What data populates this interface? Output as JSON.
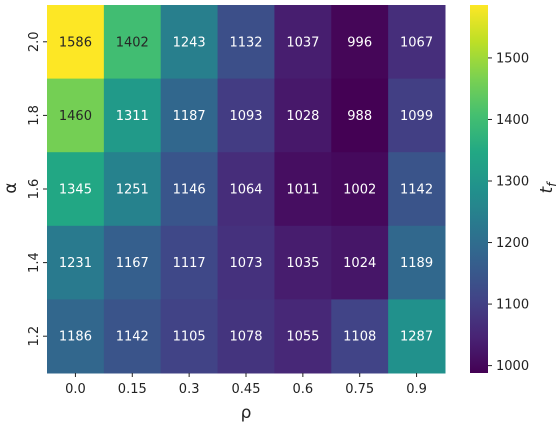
{
  "chart_data": {
    "type": "heatmap",
    "xlabel": "ρ",
    "ylabel": "α",
    "colorbar_label": "t",
    "colorbar_label_subscript": "f",
    "x": [
      "0.0",
      "0.15",
      "0.3",
      "0.45",
      "0.6",
      "0.75",
      "0.9"
    ],
    "y": [
      "2.0",
      "1.8",
      "1.6",
      "1.4",
      "1.2"
    ],
    "values": [
      [
        1586,
        1402,
        1243,
        1132,
        1037,
        996,
        1067
      ],
      [
        1460,
        1311,
        1187,
        1093,
        1028,
        988,
        1099
      ],
      [
        1345,
        1251,
        1146,
        1064,
        1011,
        1002,
        1142
      ],
      [
        1231,
        1167,
        1117,
        1073,
        1035,
        1024,
        1189
      ],
      [
        1186,
        1142,
        1105,
        1078,
        1055,
        1108,
        1287
      ]
    ],
    "vmin": 988,
    "vmax": 1586,
    "colormap": "viridis",
    "colorbar_ticks": [
      "1000",
      "1100",
      "1200",
      "1300",
      "1400",
      "1500"
    ]
  }
}
